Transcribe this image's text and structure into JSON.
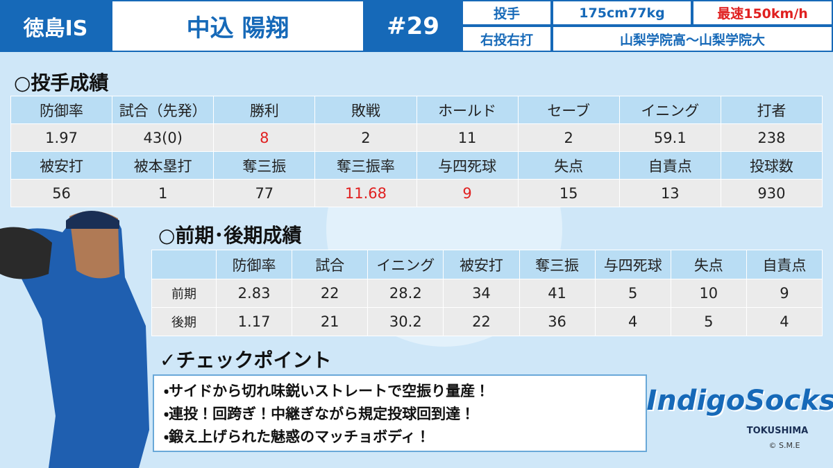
{
  "header": {
    "team": "徳島IS",
    "name": "中込 陽翔",
    "number": "#29",
    "position": "投手",
    "body": "175cm77kg",
    "top_speed": "最速150km/h",
    "throw_bat": "右投右打",
    "career": "山梨学院高～山梨学院大"
  },
  "pitching": {
    "title": "○投手成績",
    "rows": [
      [
        "防御率",
        "試合（先発）",
        "勝利",
        "敗戦",
        "ホールド",
        "セーブ",
        "イニング",
        "打者"
      ],
      [
        "1.97",
        "43(0)",
        "8",
        "2",
        "11",
        "2",
        "59.1",
        "238"
      ],
      [
        "被安打",
        "被本塁打",
        "奪三振",
        "奪三振率",
        "与四死球",
        "失点",
        "自責点",
        "投球数"
      ],
      [
        "56",
        "1",
        "77",
        "11.68",
        "9",
        "15",
        "13",
        "930"
      ]
    ]
  },
  "split": {
    "title": "○前期･後期成績",
    "columns": [
      "防御率",
      "試合",
      "イニング",
      "被安打",
      "奪三振",
      "与四死球",
      "失点",
      "自責点"
    ],
    "rows": [
      {
        "label": "前期",
        "values": [
          "2.83",
          "22",
          "28.2",
          "34",
          "41",
          "5",
          "10",
          "9"
        ]
      },
      {
        "label": "後期",
        "values": [
          "1.17",
          "21",
          "30.2",
          "22",
          "36",
          "4",
          "5",
          "4"
        ]
      }
    ]
  },
  "checkpoints": {
    "title": "✓チェックポイント",
    "items": [
      "・サイドから切れ味鋭いストレートで空振り量産！",
      "・連投！回跨ぎ！中継ぎながら規定投球回到達！",
      "・鍛え上げられた魅惑のマッチョボディ！"
    ]
  },
  "logo": {
    "name": "IndigoSocks",
    "region": "TOKUSHIMA",
    "credit": "© S.M.E"
  }
}
